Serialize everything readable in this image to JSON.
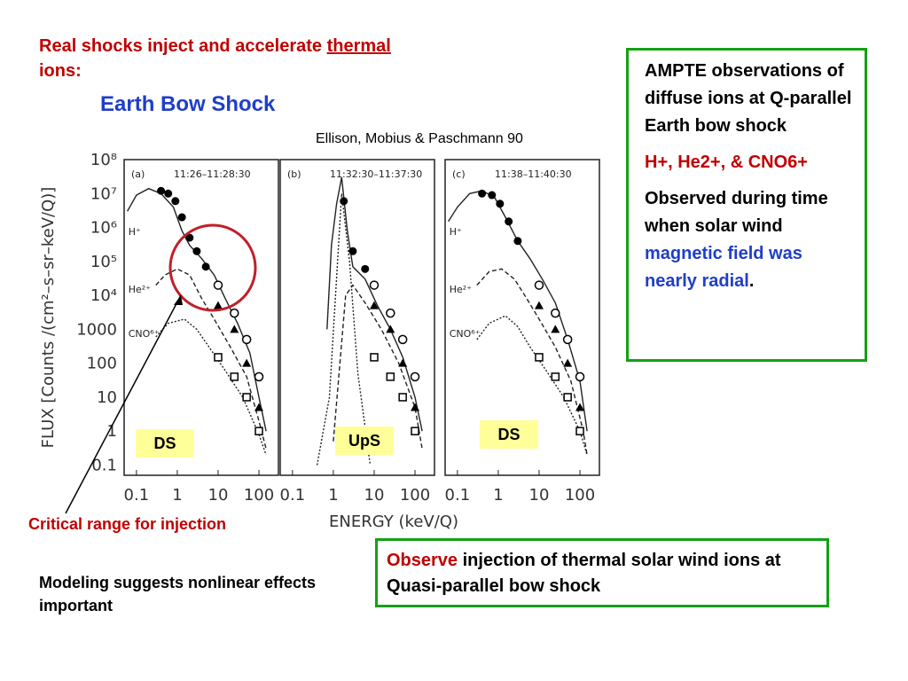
{
  "title": {
    "main": "Real shocks inject and accelerate ",
    "underlined": "thermal",
    "tail": "ions:"
  },
  "subtitle": "Earth Bow Shock",
  "citation": "Ellison, Mobius & Paschmann 90",
  "info_box": {
    "p1": "AMPTE observations of diffuse ions at Q-parallel Earth bow shock",
    "p2": "H+, He2+, & CNO6+",
    "p3_pre": "Observed during time when solar wind ",
    "p3_highlight": "magnetic field was nearly radial",
    "p3_post": "."
  },
  "bottom_box": {
    "highlight": "Observe",
    "rest": " injection of thermal solar wind ions at Quasi-parallel bow shock"
  },
  "critical_label": "Critical range for injection",
  "modeling_text": "Modeling suggests nonlinear effects important",
  "colors": {
    "red": "#c00000",
    "blue": "#1f3ec9",
    "green_border": "#14a014",
    "circle": "#c0202a",
    "region_label_bg": "#ffff99"
  },
  "chart_data": {
    "type": "line",
    "xlabel": "ENERGY (keV/Q)",
    "ylabel": "FLUX  [Counts /(cm²–s–sr–keV/Q)]",
    "xscale": "log",
    "yscale": "log",
    "xlim": [
      0.05,
      300
    ],
    "ylim": [
      0.05,
      100000000
    ],
    "x_tick_labels": [
      "0.1",
      "1",
      "10",
      "100"
    ],
    "y_tick_labels": [
      "0.1",
      "1",
      "10",
      "100",
      "1000",
      "10⁴",
      "10⁵",
      "10⁶",
      "10⁷",
      "10⁸"
    ],
    "y_tick_values": [
      0.1,
      1,
      10,
      100,
      1000,
      10000,
      100000,
      1000000,
      10000000,
      100000000
    ],
    "panels": [
      {
        "letter": "(a)",
        "time": "11:26–11:28:30",
        "region": "DS",
        "species_labels": [
          {
            "text": "H⁺",
            "x": 0.07,
            "y": 600000
          },
          {
            "text": "He²⁺",
            "x": 0.07,
            "y": 12000
          },
          {
            "text": "CNO⁶⁺",
            "x": 0.07,
            "y": 600
          }
        ],
        "series": [
          {
            "name": "H+",
            "style": "solid",
            "x": [
              0.06,
              0.1,
              0.2,
              0.4,
              0.8,
              1.3,
              2,
              4,
              8,
              15,
              30,
              60,
              100,
              150
            ],
            "y": [
              3000000,
              9000000,
              14000000,
              10000000,
              4000000,
              800000,
              300000,
              120000,
              40000,
              8000,
              1500,
              200,
              10,
              1
            ],
            "marker": "filled-circle",
            "marker_x": [
              0.4,
              0.6,
              0.9,
              1.3,
              2,
              3,
              5
            ],
            "marker_y": [
              12000000,
              10000000,
              6000000,
              2000000,
              500000,
              200000,
              70000
            ]
          },
          {
            "name": "He2+",
            "style": "dashed",
            "x": [
              0.3,
              0.5,
              1,
              2,
              4,
              8,
              20,
              50,
              100,
              150
            ],
            "y": [
              20000,
              40000,
              60000,
              40000,
              8000,
              2000,
              300,
              40,
              2,
              0.3
            ]
          },
          {
            "name": "CNO6+",
            "style": "dotted",
            "x": [
              0.3,
              0.6,
              1.5,
              3,
              6,
              15,
              40,
              100,
              150
            ],
            "y": [
              600,
              1500,
              2000,
              1000,
              300,
              60,
              10,
              0.8,
              0.2
            ]
          }
        ]
      },
      {
        "letter": "(b)",
        "time": "11:32:30–11:37:30",
        "region": "UpS",
        "species_labels": [],
        "series": [
          {
            "name": "H+",
            "style": "solid",
            "x": [
              0.7,
              0.9,
              1.2,
              1.6,
              2.2,
              3,
              6,
              12,
              25,
              50,
              100,
              150
            ],
            "y": [
              1000,
              300000,
              5000000,
              30000000,
              800000,
              70000,
              30000,
              5000,
              1000,
              150,
              10,
              1
            ],
            "marker": "filled-circle",
            "marker_x": [
              1.8,
              3,
              6
            ],
            "marker_y": [
              6000000,
              200000,
              60000
            ]
          },
          {
            "name": "He2+",
            "style": "dashed",
            "x": [
              1,
              2,
              3,
              6,
              15,
              40,
              100,
              150
            ],
            "y": [
              0.5,
              10000,
              20000,
              6000,
              1000,
              100,
              5,
              0.3
            ]
          },
          {
            "name": "CNO6+",
            "style": "dotted",
            "x": [
              0.4,
              0.8,
              1.6,
              2.5,
              4,
              8
            ],
            "y": [
              0.1,
              10,
              10000000,
              100000,
              50,
              0.1
            ]
          }
        ]
      },
      {
        "letter": "(c)",
        "time": "11:38–11:40:30",
        "region": "DS",
        "species_labels": [
          {
            "text": "H⁺",
            "x": 0.07,
            "y": 600000
          },
          {
            "text": "He²⁺",
            "x": 0.07,
            "y": 12000
          },
          {
            "text": "CNO⁶⁺",
            "x": 0.07,
            "y": 600
          }
        ],
        "series": [
          {
            "name": "H+",
            "style": "solid",
            "x": [
              0.06,
              0.1,
              0.2,
              0.4,
              0.8,
              1.5,
              3,
              6,
              12,
              25,
              50,
              100,
              150
            ],
            "y": [
              1500000,
              4000000,
              10000000,
              12000000,
              8000000,
              2000000,
              400000,
              120000,
              30000,
              6000,
              500,
              30,
              1
            ],
            "marker": "filled-circle",
            "marker_x": [
              0.4,
              0.7,
              1.1,
              1.8,
              3
            ],
            "marker_y": [
              10000000,
              9000000,
              5000000,
              1500000,
              400000
            ]
          },
          {
            "name": "He2+",
            "style": "dashed",
            "x": [
              0.3,
              0.6,
              1.2,
              2.5,
              5,
              10,
              25,
              60,
              120,
              150
            ],
            "y": [
              20000,
              50000,
              60000,
              30000,
              8000,
              2000,
              300,
              30,
              1,
              0.2
            ]
          },
          {
            "name": "CNO6+",
            "style": "dotted",
            "x": [
              0.3,
              0.6,
              1.5,
              3,
              6,
              15,
              40,
              100,
              150
            ],
            "y": [
              500,
              1500,
              2500,
              1200,
              300,
              60,
              10,
              1,
              0.2
            ]
          }
        ]
      }
    ],
    "open_circles": {
      "x": [
        10,
        25,
        50,
        100
      ],
      "y": [
        20000,
        3000,
        500,
        40
      ]
    },
    "triangles": {
      "x": [
        10,
        25,
        50,
        100
      ],
      "y": [
        5000,
        1000,
        100,
        5
      ]
    },
    "squares": {
      "x": [
        10,
        25,
        50,
        100
      ],
      "y": [
        150,
        40,
        10,
        1
      ]
    }
  }
}
